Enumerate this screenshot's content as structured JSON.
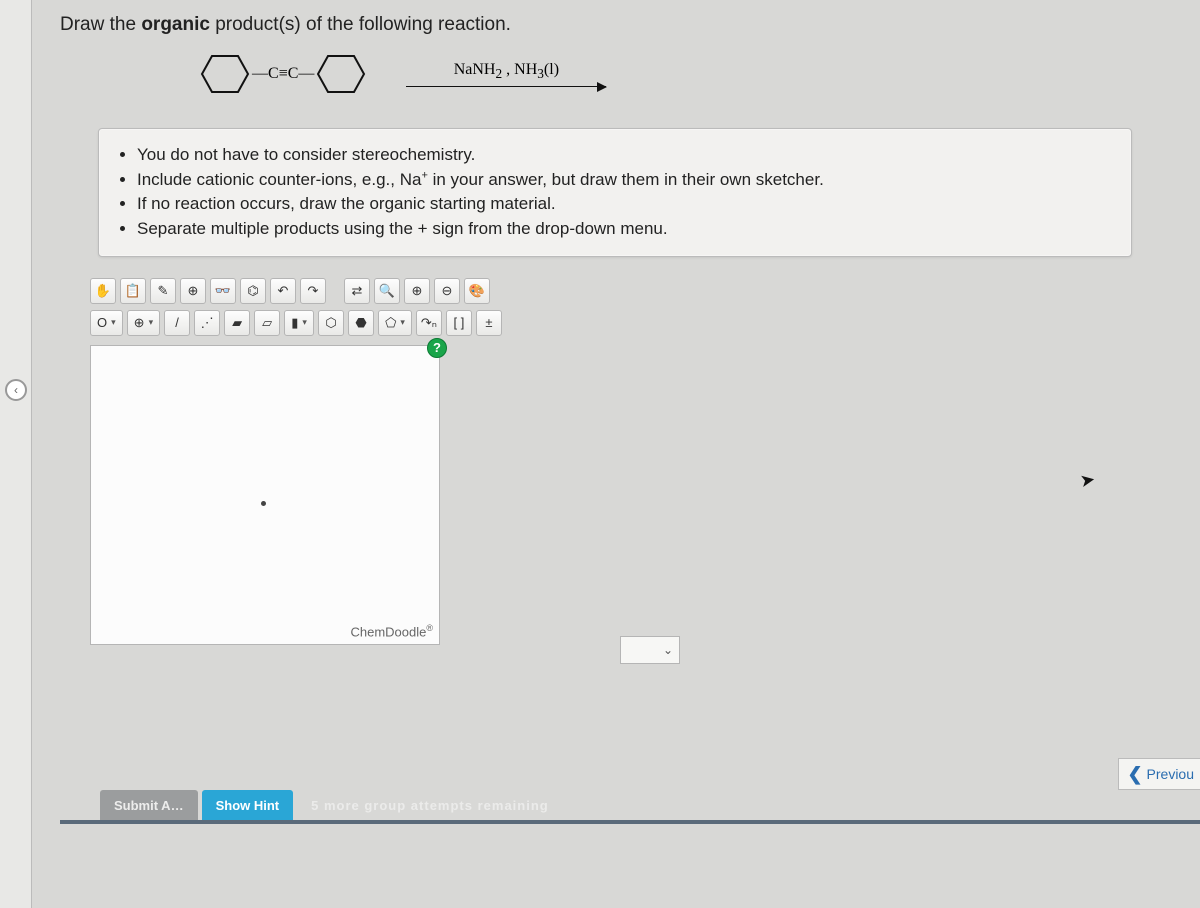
{
  "question": {
    "title_pre": "Draw the ",
    "title_bold": "organic",
    "title_post": " product(s) of the following reaction.",
    "triple_label": "C≡C",
    "reagent_html": "NaNH₂ , NH₃(l)"
  },
  "instructions": [
    "You do not have to consider stereochemistry.",
    "Include cationic counter-ions, e.g., Na⁺ in your answer, but draw them in their own sketcher.",
    "If no reaction occurs, draw the organic starting material.",
    "Separate multiple products using the + sign from the drop-down menu."
  ],
  "toolbar_row1": [
    {
      "name": "hand-icon",
      "glyph": "✋"
    },
    {
      "name": "clipboard-icon",
      "glyph": "📋"
    },
    {
      "name": "eraser-icon",
      "glyph": "✎"
    },
    {
      "name": "target-icon",
      "glyph": "⊕"
    },
    {
      "name": "glasses-icon",
      "glyph": "👓"
    },
    {
      "name": "molecule-template-icon",
      "glyph": "⌬"
    },
    {
      "name": "undo-icon",
      "glyph": "↶"
    },
    {
      "name": "redo-icon",
      "glyph": "↷"
    },
    {
      "name": "spacer",
      "glyph": ""
    },
    {
      "name": "flask-swap-icon",
      "glyph": "⇄"
    },
    {
      "name": "search-structure-icon",
      "glyph": "🔍"
    },
    {
      "name": "zoom-in-icon",
      "glyph": "⊕"
    },
    {
      "name": "zoom-out-icon",
      "glyph": "⊖"
    },
    {
      "name": "palette-icon",
      "glyph": "🎨"
    }
  ],
  "toolbar_row2": [
    {
      "name": "element-o-dropdown",
      "glyph": "O",
      "caret": true
    },
    {
      "name": "charge-plus-dropdown",
      "glyph": "⊕",
      "caret": true
    },
    {
      "name": "single-bond-icon",
      "glyph": "/"
    },
    {
      "name": "chain-icon",
      "glyph": "⋰"
    },
    {
      "name": "wedge-solid-icon",
      "glyph": "▰"
    },
    {
      "name": "wedge-hash-icon",
      "glyph": "▱"
    },
    {
      "name": "bond-tool-dropdown",
      "glyph": "▮",
      "caret": true
    },
    {
      "name": "hexagon-icon",
      "glyph": "⬡"
    },
    {
      "name": "cyclohexane-icon",
      "glyph": "⬣"
    },
    {
      "name": "pentagon-dropdown",
      "glyph": "⬠",
      "caret": true
    },
    {
      "name": "curve-arrow-icon",
      "glyph": "↷ₙ"
    },
    {
      "name": "bracket-icon",
      "glyph": "[ ]"
    },
    {
      "name": "charge-toggle-icon",
      "glyph": "±"
    }
  ],
  "canvas": {
    "help_label": "?",
    "brand": "ChemDoodle",
    "brand_sup": "®"
  },
  "bottom": {
    "submit": "Submit A…",
    "hint": "Show Hint",
    "attempts": "5 more group attempts remaining",
    "previous": "Previou"
  },
  "colors": {
    "page_bg": "#d8d8d6",
    "box_bg": "#f2f1ef",
    "border": "#bbbbbb",
    "hint_bg": "#2aa6d6",
    "help_bg": "#1aa54a",
    "link": "#2a6db0"
  }
}
